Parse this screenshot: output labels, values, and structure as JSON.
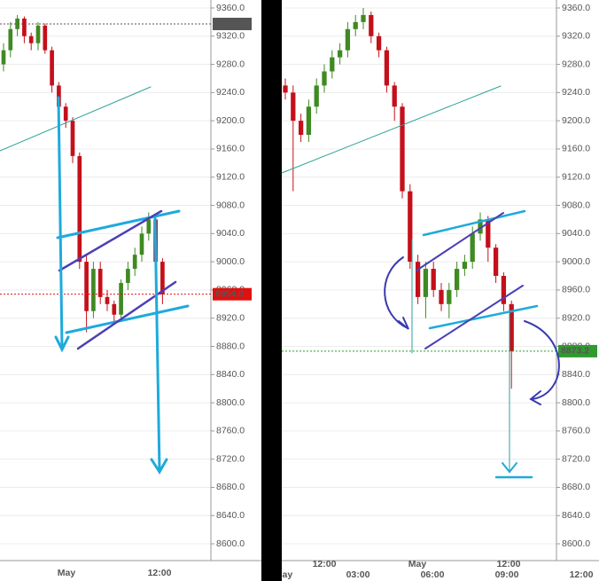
{
  "chart_data": [
    {
      "type": "candlestick",
      "open": [
        9280,
        9300,
        9330,
        9345,
        9320,
        9310,
        9335,
        9300,
        9250,
        9220,
        9200,
        9150,
        9000,
        8930,
        8990,
        8950,
        8940,
        8925,
        8970,
        8990,
        9010,
        9040,
        9060,
        9000
      ],
      "high": [
        9310,
        9340,
        9350,
        9348,
        9325,
        9340,
        9338,
        9305,
        9255,
        9225,
        9205,
        9155,
        9010,
        9000,
        9000,
        8960,
        8945,
        8975,
        9000,
        9020,
        9050,
        9070,
        9065,
        9005
      ],
      "low": [
        9270,
        9290,
        9320,
        9310,
        9300,
        9300,
        9295,
        9240,
        9210,
        9190,
        9140,
        8990,
        8900,
        8920,
        8940,
        8930,
        8915,
        8920,
        8960,
        8980,
        9000,
        9030,
        8990,
        8940
      ],
      "close": [
        9300,
        9330,
        9345,
        9320,
        9310,
        9335,
        9300,
        9250,
        9220,
        9200,
        9150,
        9000,
        8930,
        8990,
        8950,
        8940,
        8925,
        8970,
        8990,
        9010,
        9040,
        9060,
        9000,
        8954
      ],
      "x_labels": [
        "May",
        "12:00"
      ],
      "price_lines": [
        {
          "value": 9337.3,
          "label": "9337.3",
          "color": "#555555"
        },
        {
          "value": 8954,
          "label": "8954.0",
          "color": "#e01010"
        }
      ],
      "ylim": [
        8590,
        9365
      ],
      "yticks": [
        {
          "value": 9360,
          "label": "9360.0"
        },
        {
          "value": 9320,
          "label": "9320.0"
        },
        {
          "value": 9280,
          "label": "9280.0"
        },
        {
          "value": 9240,
          "label": "9240.0"
        },
        {
          "value": 9200,
          "label": "9200.0"
        },
        {
          "value": 9160,
          "label": "9160.0"
        },
        {
          "value": 9120,
          "label": "9120.0"
        },
        {
          "value": 9080,
          "label": "9080.0"
        },
        {
          "value": 9040,
          "label": "9040.0"
        },
        {
          "value": 9000,
          "label": "9000.0"
        },
        {
          "value": 8960,
          "label": "8960.0"
        },
        {
          "value": 8920,
          "label": "8920.0"
        },
        {
          "value": 8880,
          "label": "8880.0"
        },
        {
          "value": 8840,
          "label": "8840.0"
        },
        {
          "value": 8800,
          "label": "8800.0"
        },
        {
          "value": 8760,
          "label": "8760.0"
        },
        {
          "value": 8720,
          "label": "8720.0"
        },
        {
          "value": 8680,
          "label": "8680.0"
        },
        {
          "value": 8640,
          "label": "8640.0"
        },
        {
          "value": 8600,
          "label": "8600.0"
        }
      ],
      "grid": true,
      "up_color": "#3f8a22",
      "down_color": "#c4101a"
    },
    {
      "type": "candlestick",
      "open": [
        9250,
        9240,
        9200,
        9180,
        9220,
        9250,
        9270,
        9290,
        9300,
        9330,
        9340,
        9350,
        9320,
        9300,
        9250,
        9220,
        9100,
        9000,
        8950,
        8990,
        8960,
        8940,
        8960,
        8990,
        9000,
        9040,
        9060,
        9020,
        8980,
        8940
      ],
      "high": [
        9260,
        9250,
        9210,
        9230,
        9260,
        9280,
        9300,
        9310,
        9340,
        9350,
        9360,
        9355,
        9325,
        9305,
        9255,
        9225,
        9110,
        9010,
        9000,
        9000,
        8970,
        8970,
        9000,
        9010,
        9050,
        9070,
        9065,
        9025,
        8985,
        8945
      ],
      "low": [
        9230,
        9100,
        9170,
        9170,
        9210,
        9240,
        9260,
        9280,
        9290,
        9320,
        9330,
        9310,
        9290,
        9240,
        9200,
        9090,
        8990,
        8940,
        8920,
        8950,
        8930,
        8920,
        8950,
        8980,
        8990,
        9030,
        9000,
        8970,
        8930,
        8820
      ],
      "close": [
        9240,
        9200,
        9180,
        9220,
        9250,
        9270,
        9290,
        9300,
        9330,
        9340,
        9350,
        9320,
        9300,
        9250,
        9220,
        9100,
        9000,
        8950,
        8990,
        8960,
        8940,
        8960,
        8990,
        9000,
        9040,
        9060,
        9020,
        8980,
        8940,
        8873.2
      ],
      "x_labels": [
        "May",
        "12:00",
        "03:00",
        "May",
        "06:00",
        "12:00",
        "09:00",
        "12:00"
      ],
      "price_lines": [
        {
          "value": 8873.2,
          "label": "8873.2",
          "color": "#2f9a2f"
        }
      ],
      "ylim": [
        8590,
        9365
      ],
      "yticks": [
        {
          "value": 9360,
          "label": "9360.0"
        },
        {
          "value": 9320,
          "label": "9320.0"
        },
        {
          "value": 9280,
          "label": "9280.0"
        },
        {
          "value": 9240,
          "label": "9240.0"
        },
        {
          "value": 9200,
          "label": "9200.0"
        },
        {
          "value": 9160,
          "label": "9160.0"
        },
        {
          "value": 9120,
          "label": "9120.0"
        },
        {
          "value": 9080,
          "label": "9080.0"
        },
        {
          "value": 9040,
          "label": "9040.0"
        },
        {
          "value": 9000,
          "label": "9000.0"
        },
        {
          "value": 8960,
          "label": "8960.0"
        },
        {
          "value": 8920,
          "label": "8920.0"
        },
        {
          "value": 8880,
          "label": "8880.0"
        },
        {
          "value": 8840,
          "label": "8840.0"
        },
        {
          "value": 8800,
          "label": "8800.0"
        },
        {
          "value": 8760,
          "label": "8760.0"
        },
        {
          "value": 8720,
          "label": "8720.0"
        },
        {
          "value": 8680,
          "label": "8680.0"
        },
        {
          "value": 8640,
          "label": "8640.0"
        },
        {
          "value": 8600,
          "label": "8600.0"
        }
      ],
      "grid": true,
      "up_color": "#3f8a22",
      "down_color": "#c4101a"
    }
  ]
}
